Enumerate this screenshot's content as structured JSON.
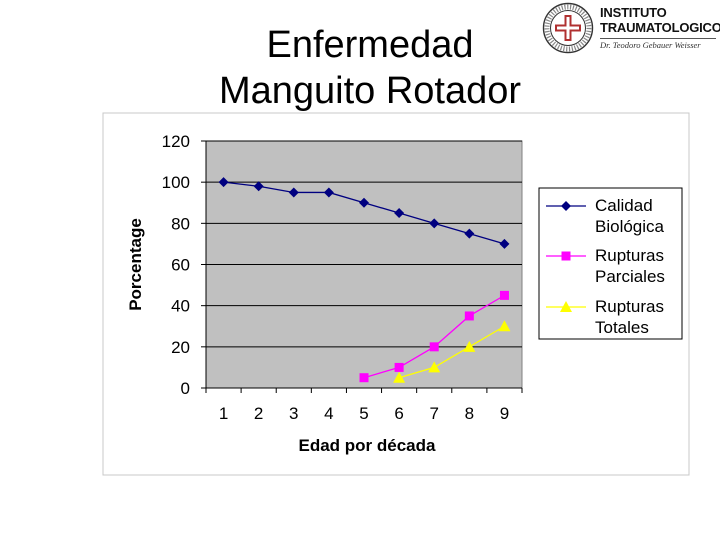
{
  "slide": {
    "title_line1": "Enfermedad",
    "title_line2": "Manguito Rotador"
  },
  "logo": {
    "seal_icon": "institute-seal-icon",
    "line1": "INSTITUTO",
    "line2": "TRAUMATOLOGICO",
    "line3": "Dr. Teodoro Gebauer Weisser"
  },
  "chart_data": {
    "type": "line",
    "xlabel": "Edad por década",
    "ylabel": "Porcentage",
    "x": [
      1,
      2,
      3,
      4,
      5,
      6,
      7,
      8,
      9
    ],
    "ylim": [
      0,
      120
    ],
    "yticks": [
      0,
      20,
      40,
      60,
      80,
      100,
      120
    ],
    "grid": true,
    "legend_position": "right",
    "plot_background": "#c0c0c0",
    "series": [
      {
        "name": "Calidad Biológica",
        "legend_lines": [
          "Calidad",
          "Biológica"
        ],
        "color": "#000080",
        "marker": "diamond",
        "x": [
          1,
          2,
          3,
          4,
          5,
          6,
          7,
          8,
          9
        ],
        "values": [
          100,
          98,
          95,
          95,
          90,
          85,
          80,
          75,
          70
        ]
      },
      {
        "name": "Rupturas Parciales",
        "legend_lines": [
          "Rupturas",
          "Parciales"
        ],
        "color": "#ff00ff",
        "marker": "square",
        "x": [
          5,
          6,
          7,
          8,
          9
        ],
        "values": [
          5,
          10,
          20,
          35,
          45
        ]
      },
      {
        "name": "Rupturas Totales",
        "legend_lines": [
          "Rupturas",
          "Totales"
        ],
        "color": "#ffff00",
        "marker": "triangle",
        "x": [
          6,
          7,
          8,
          9
        ],
        "values": [
          5,
          10,
          20,
          30
        ]
      }
    ]
  }
}
